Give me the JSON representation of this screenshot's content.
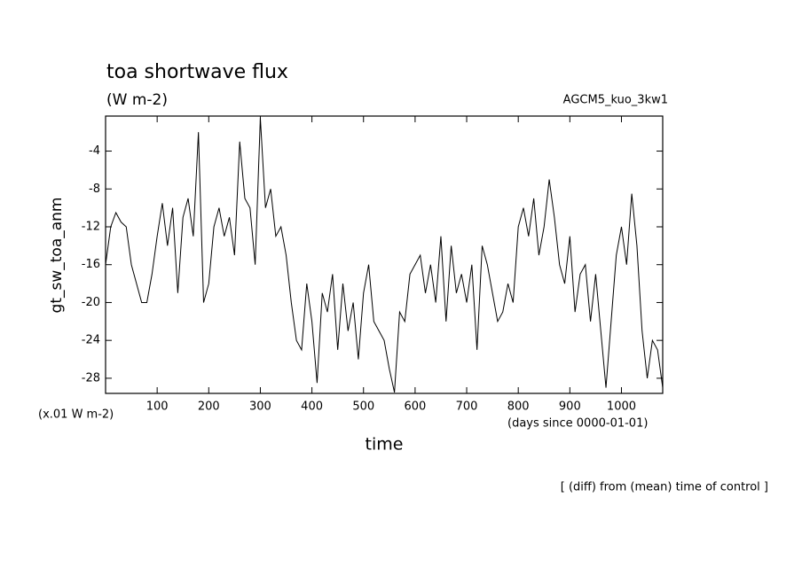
{
  "chart_data": {
    "type": "line",
    "title": "toa shortwave flux",
    "subtitle": "(W m-2)",
    "run_label": "AGCM5_kuo_3kw1",
    "y_label": "gt_sw_toa_anm",
    "y_unit": "(x.01 W m-2)",
    "x_unit": "(days since 0000-01-01)",
    "x_label": "time",
    "note": "[ (diff) from (mean) time of control ]",
    "xlim": [
      0,
      1080
    ],
    "ylim": [
      -29.6,
      -0.3
    ],
    "xticks": [
      100,
      200,
      300,
      400,
      500,
      600,
      700,
      800,
      900,
      1000
    ],
    "yticks": [
      -28,
      -24,
      -20,
      -16,
      -12,
      -8,
      -4
    ],
    "grid": false,
    "color": "#000000",
    "x": [
      0,
      10,
      20,
      30,
      40,
      50,
      60,
      70,
      80,
      90,
      100,
      110,
      120,
      130,
      140,
      150,
      160,
      170,
      180,
      190,
      200,
      210,
      220,
      230,
      240,
      250,
      260,
      270,
      280,
      290,
      300,
      310,
      320,
      330,
      340,
      350,
      360,
      370,
      380,
      390,
      400,
      410,
      420,
      430,
      440,
      450,
      460,
      470,
      480,
      490,
      500,
      510,
      520,
      530,
      540,
      550,
      560,
      570,
      580,
      590,
      600,
      610,
      620,
      630,
      640,
      650,
      660,
      670,
      680,
      690,
      700,
      710,
      720,
      730,
      740,
      750,
      760,
      770,
      780,
      790,
      800,
      810,
      820,
      830,
      840,
      850,
      860,
      870,
      880,
      890,
      900,
      910,
      920,
      930,
      940,
      950,
      960,
      970,
      980,
      990,
      1000,
      1010,
      1020,
      1030,
      1040,
      1050,
      1060,
      1070,
      1080
    ],
    "values": [
      -16,
      -12,
      -10.5,
      -11.5,
      -12,
      -16,
      -18,
      -20,
      -20,
      -17,
      -13,
      -9.5,
      -14,
      -10,
      -19,
      -11,
      -9,
      -13,
      -2,
      -20,
      -18,
      -12,
      -10,
      -13,
      -11,
      -15,
      -3,
      -9,
      -10,
      -16,
      -0.5,
      -10,
      -8,
      -13,
      -12,
      -15,
      -20,
      -24,
      -25,
      -18,
      -22,
      -28.5,
      -19,
      -21,
      -17,
      -25,
      -18,
      -23,
      -20,
      -26,
      -19,
      -16,
      -22,
      -23,
      -24,
      -27,
      -29.5,
      -21,
      -22,
      -17,
      -16,
      -15,
      -19,
      -16,
      -20,
      -13,
      -22,
      -14,
      -19,
      -17,
      -20,
      -16,
      -25,
      -14,
      -16,
      -19,
      -22,
      -21,
      -18,
      -20,
      -12,
      -10,
      -13,
      -9,
      -15,
      -12,
      -7,
      -11,
      -16,
      -18,
      -13,
      -21,
      -17,
      -16,
      -22,
      -17,
      -23,
      -29,
      -22,
      -15,
      -12,
      -16,
      -8.5,
      -14,
      -23,
      -28,
      -24,
      -25,
      -29
    ]
  }
}
